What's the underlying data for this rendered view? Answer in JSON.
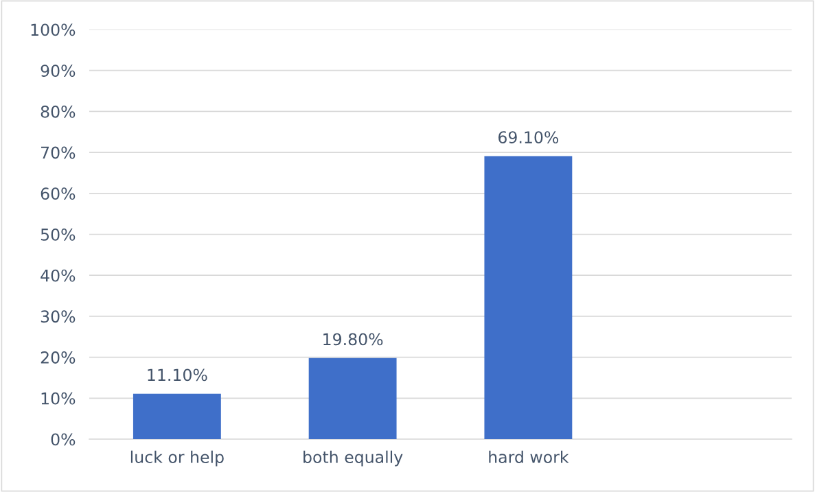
{
  "chart_data": {
    "type": "bar",
    "categories": [
      "luck or help",
      "both equally",
      "hard work",
      null
    ],
    "values": [
      11.1,
      19.8,
      69.1,
      null
    ],
    "value_labels": [
      "11.10%",
      "19.80%",
      "69.10%",
      null
    ],
    "color": "#3f6fc9",
    "ylim": [
      0,
      100
    ],
    "yticks": [
      {
        "value": 0,
        "label": "0%"
      },
      {
        "value": 10,
        "label": "10%"
      },
      {
        "value": 20,
        "label": "20%"
      },
      {
        "value": 30,
        "label": "30%"
      },
      {
        "value": 40,
        "label": "40%"
      },
      {
        "value": 50,
        "label": "50%"
      },
      {
        "value": 60,
        "label": "60%"
      },
      {
        "value": 70,
        "label": "70%"
      },
      {
        "value": 80,
        "label": "80%"
      },
      {
        "value": 90,
        "label": "90%"
      },
      {
        "value": 100,
        "label": "100%"
      }
    ],
    "grid": "y"
  }
}
